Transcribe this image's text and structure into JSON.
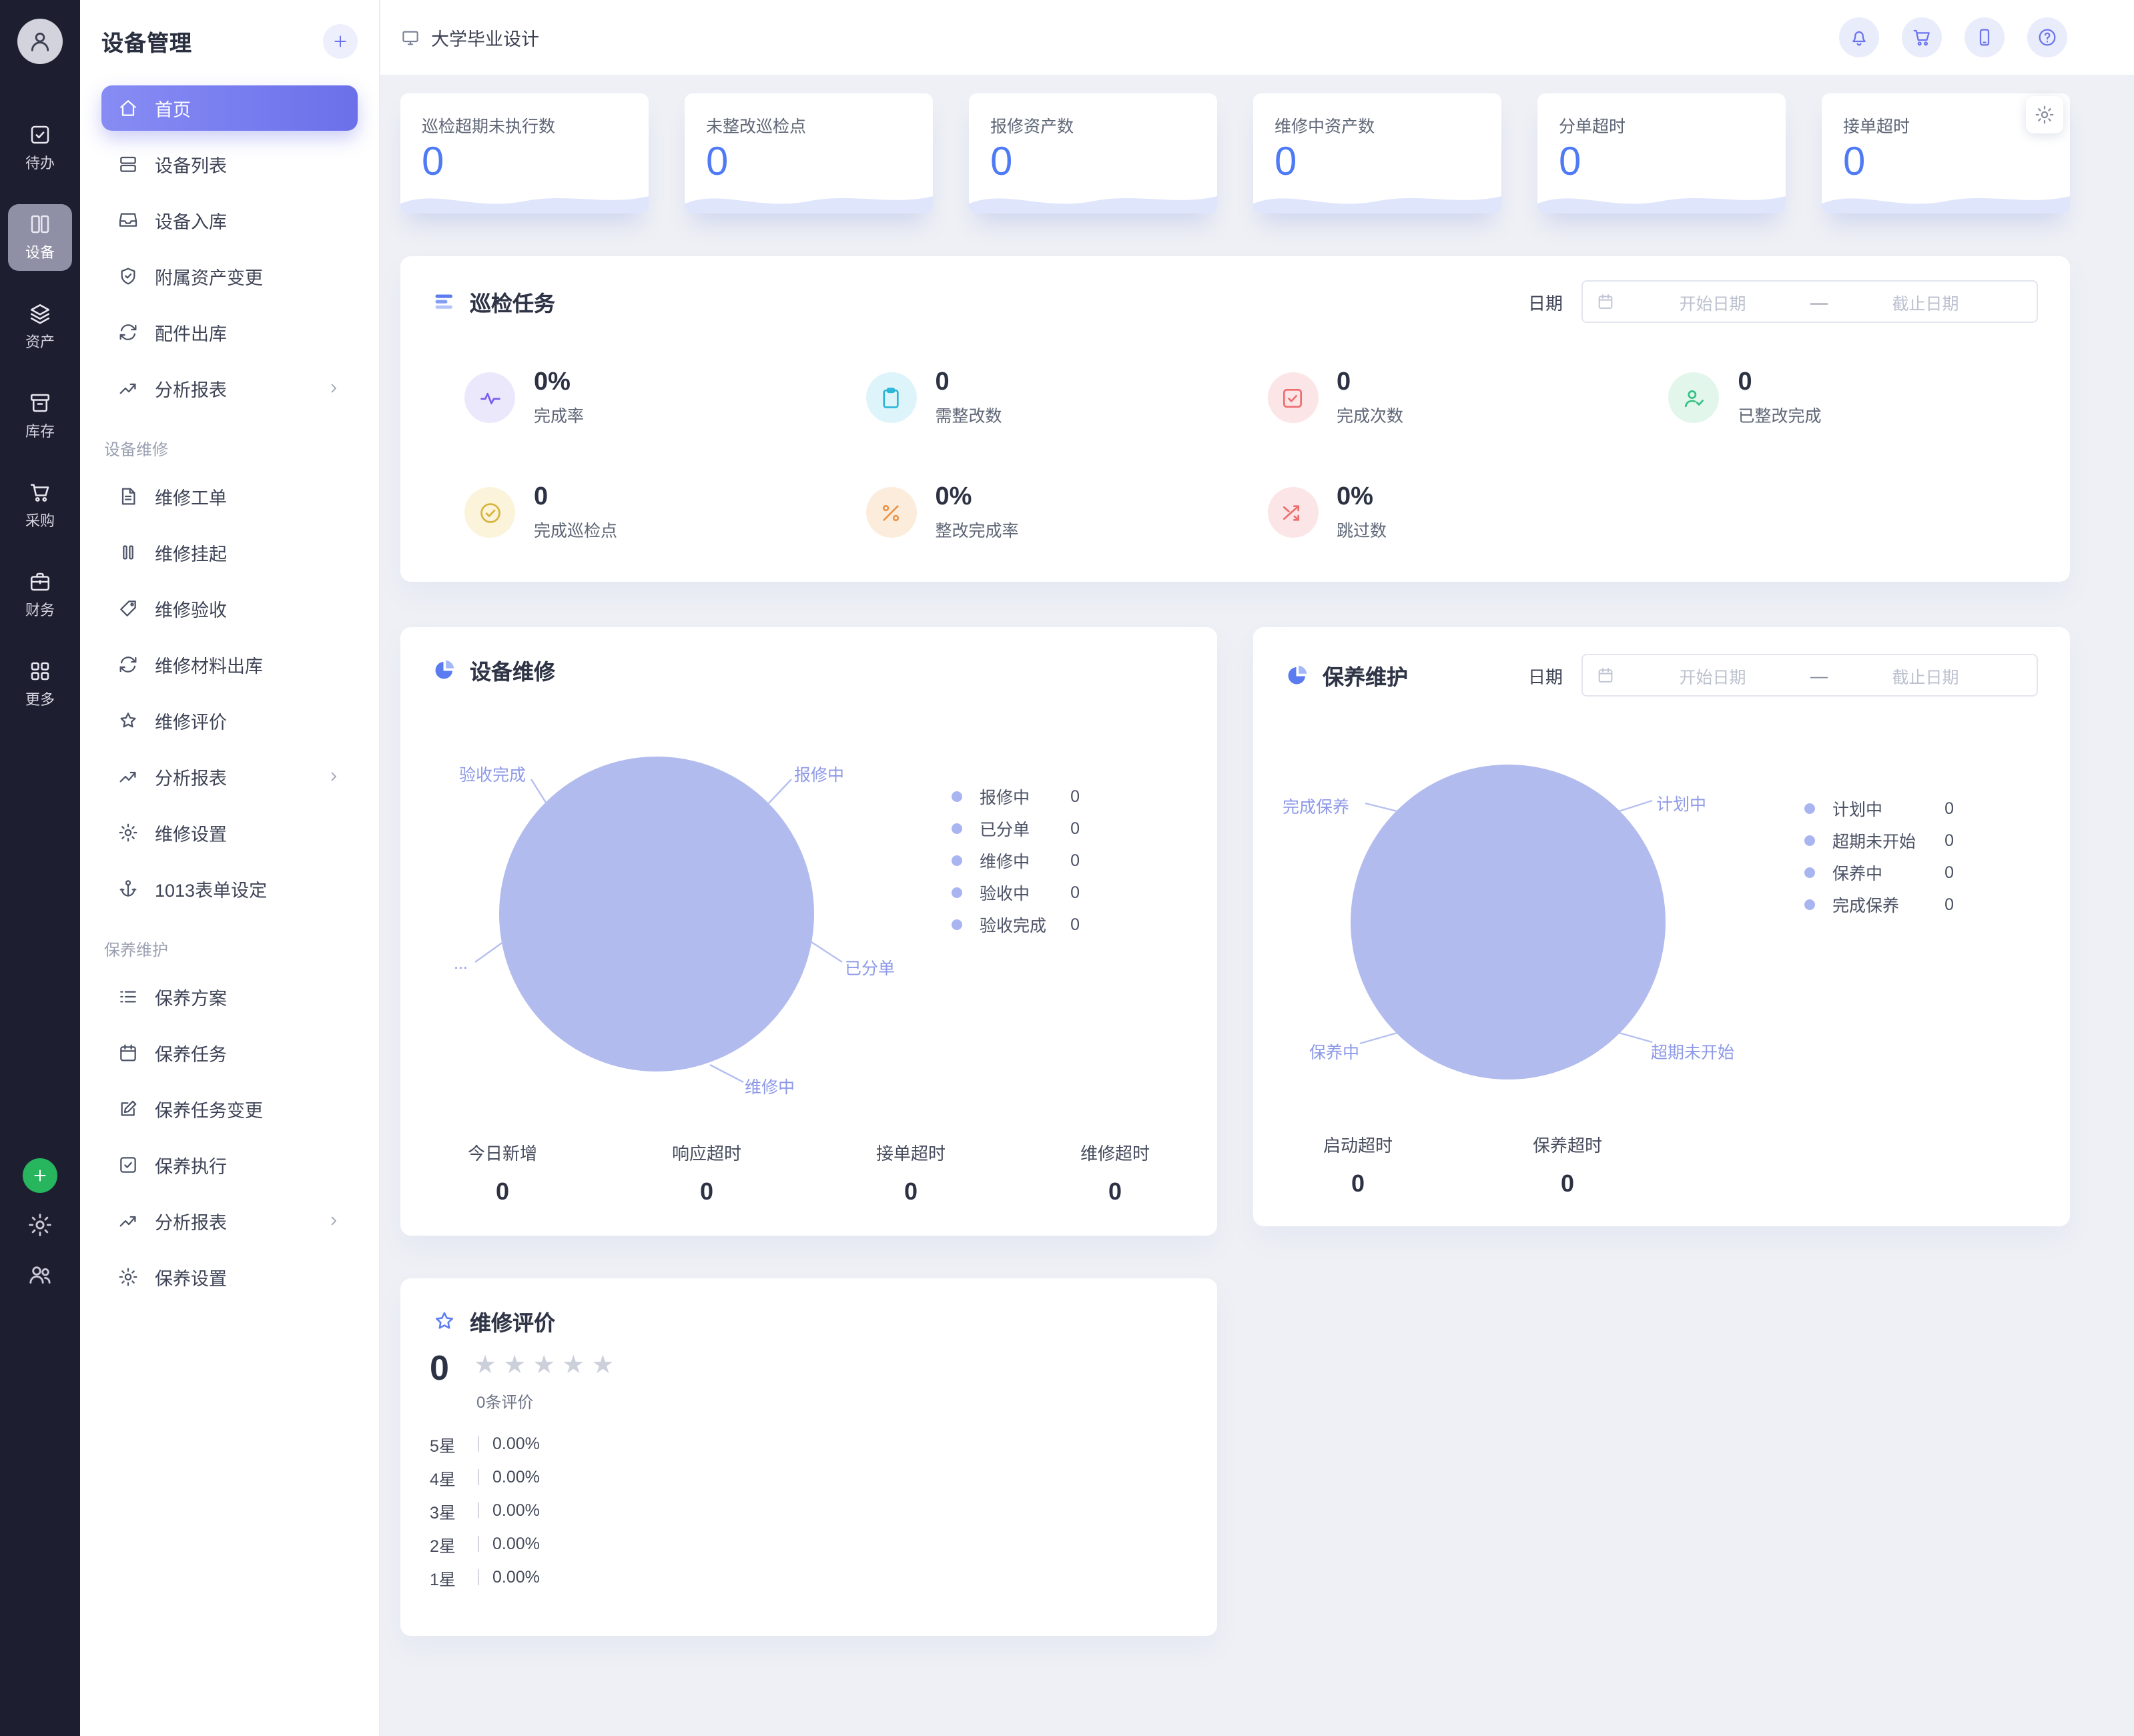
{
  "rail": {
    "items": [
      {
        "label": "待办",
        "icon": "todo"
      },
      {
        "label": "设备",
        "icon": "device",
        "active": true
      },
      {
        "label": "资产",
        "icon": "assets"
      },
      {
        "label": "库存",
        "icon": "inventory"
      },
      {
        "label": "采购",
        "icon": "cart"
      },
      {
        "label": "财务",
        "icon": "finance"
      },
      {
        "label": "更多",
        "icon": "more"
      }
    ]
  },
  "sidebar": {
    "title": "设备管理",
    "items": [
      {
        "label": "首页",
        "icon": "home",
        "active": true
      },
      {
        "label": "设备列表",
        "icon": "list"
      },
      {
        "label": "设备入库",
        "icon": "inbox"
      },
      {
        "label": "附属资产变更",
        "icon": "shield"
      },
      {
        "label": "配件出库",
        "icon": "cycle"
      },
      {
        "label": "分析报表",
        "icon": "trend",
        "chevron": true
      },
      {
        "section": "设备维修"
      },
      {
        "label": "维修工单",
        "icon": "doc"
      },
      {
        "label": "维修挂起",
        "icon": "pause"
      },
      {
        "label": "维修验收",
        "icon": "tag"
      },
      {
        "label": "维修材料出库",
        "icon": "cycle"
      },
      {
        "label": "维修评价",
        "icon": "star"
      },
      {
        "label": "分析报表",
        "icon": "trend",
        "chevron": true
      },
      {
        "label": "维修设置",
        "icon": "gear"
      },
      {
        "label": "1013表单设定",
        "icon": "anchor"
      },
      {
        "section": "保养维护"
      },
      {
        "label": "保养方案",
        "icon": "list2"
      },
      {
        "label": "保养任务",
        "icon": "calendar"
      },
      {
        "label": "保养任务变更",
        "icon": "edit"
      },
      {
        "label": "保养执行",
        "icon": "check-square"
      },
      {
        "label": "分析报表",
        "icon": "trend",
        "chevron": true
      },
      {
        "label": "保养设置",
        "icon": "gear"
      }
    ]
  },
  "header": {
    "breadcrumb": "大学毕业设计"
  },
  "stat_cards": [
    {
      "label": "巡检超期未执行数",
      "value": "0"
    },
    {
      "label": "未整改巡检点",
      "value": "0"
    },
    {
      "label": "报修资产数",
      "value": "0"
    },
    {
      "label": "维修中资产数",
      "value": "0"
    },
    {
      "label": "分单超时",
      "value": "0"
    },
    {
      "label": "接单超时",
      "value": "0"
    }
  ],
  "inspection": {
    "title": "巡检任务",
    "date": {
      "label": "日期",
      "start": "开始日期",
      "separator": "—",
      "end": "截止日期"
    },
    "stats": [
      {
        "value": "0%",
        "label": "完成率",
        "icon": "pulse",
        "color": "purple"
      },
      {
        "value": "0",
        "label": "需整改数",
        "icon": "clipboard",
        "color": "cyan"
      },
      {
        "value": "0",
        "label": "完成次数",
        "icon": "check-square",
        "color": "red"
      },
      {
        "value": "0",
        "label": "已整改完成",
        "icon": "user-check",
        "color": "green"
      },
      {
        "value": "0",
        "label": "完成巡检点",
        "icon": "check-circle",
        "color": "yellow"
      },
      {
        "value": "0%",
        "label": "整改完成率",
        "icon": "percent",
        "color": "orange"
      },
      {
        "value": "0%",
        "label": "跳过数",
        "icon": "shuffle",
        "color": "red"
      }
    ]
  },
  "repair": {
    "title": "设备维修",
    "chart_labels": [
      "验收完成",
      "报修中",
      "...",
      "已分单",
      "维修中"
    ],
    "legend": [
      {
        "label": "报修中",
        "value": "0"
      },
      {
        "label": "已分单",
        "value": "0"
      },
      {
        "label": "维修中",
        "value": "0"
      },
      {
        "label": "验收中",
        "value": "0"
      },
      {
        "label": "验收完成",
        "value": "0"
      }
    ],
    "stats": [
      {
        "label": "今日新增",
        "value": "0"
      },
      {
        "label": "响应超时",
        "value": "0"
      },
      {
        "label": "接单超时",
        "value": "0"
      },
      {
        "label": "维修超时",
        "value": "0"
      }
    ]
  },
  "maintenance": {
    "title": "保养维护",
    "date": {
      "label": "日期",
      "start": "开始日期",
      "separator": "—",
      "end": "截止日期"
    },
    "chart_labels": [
      "完成保养",
      "计划中",
      "保养中",
      "超期未开始"
    ],
    "legend": [
      {
        "label": "计划中",
        "value": "0"
      },
      {
        "label": "超期未开始",
        "value": "0"
      },
      {
        "label": "保养中",
        "value": "0"
      },
      {
        "label": "完成保养",
        "value": "0"
      }
    ],
    "stats": [
      {
        "label": "启动超时",
        "value": "0"
      },
      {
        "label": "保养超时",
        "value": "0"
      }
    ]
  },
  "evaluation": {
    "title": "维修评价",
    "score": "0",
    "count_label": "0条评价",
    "total_stars": 5,
    "filled_stars": 0,
    "rows": [
      {
        "label": "5星",
        "value": "0.00%"
      },
      {
        "label": "4星",
        "value": "0.00%"
      },
      {
        "label": "3星",
        "value": "0.00%"
      },
      {
        "label": "2星",
        "value": "0.00%"
      },
      {
        "label": "1星",
        "value": "0.00%"
      }
    ]
  }
}
